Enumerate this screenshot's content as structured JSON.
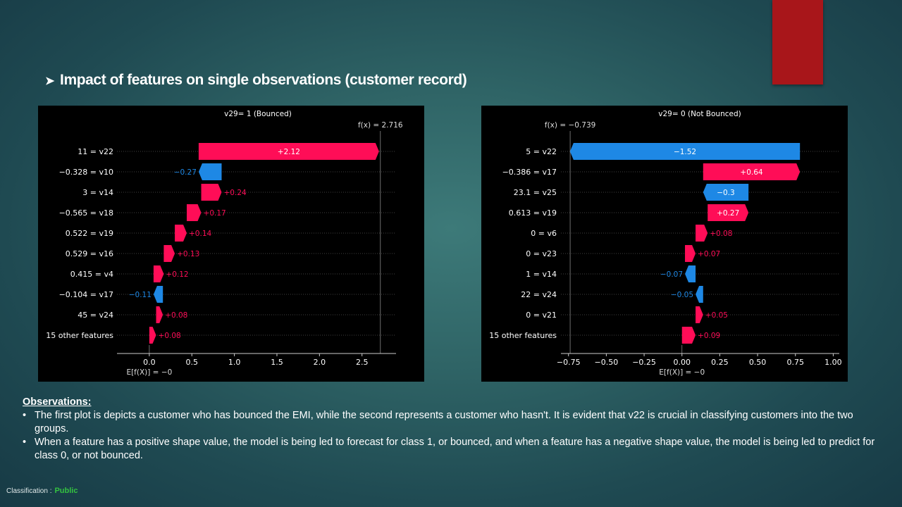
{
  "slide": {
    "title": "Impact of features on single observations (customer record)",
    "bullet_icon": "arrow-bullet-icon",
    "accent_color": "#a8161a"
  },
  "observations": {
    "heading": "Observations:",
    "items": [
      "The first plot is depicts a customer who has bounced the EMI, while the second represents a customer who hasn't. It is evident that v22 is crucial in classifying customers into the two groups.",
      "When a feature has a positive shape value, the model is being led to forecast for class 1, or bounced, and when a feature has a negative shape value, the model is being led to predict for class 0, or not bounced."
    ]
  },
  "classification": {
    "label": "Classification :",
    "value": "Public"
  },
  "colors": {
    "positive": "#ff0d57",
    "negative": "#1e88e5",
    "background": "#000000",
    "text": "#ffffff"
  },
  "chart_data": [
    {
      "type": "waterfall",
      "title": "v29= 1 (Bounced)",
      "fx_label": "f(x) = 2.716",
      "base_label": "E[f(X)] = −0",
      "fx": 2.716,
      "base": 0,
      "xlim": [
        -0.38,
        2.9
      ],
      "xticks": [
        0.0,
        0.5,
        1.0,
        1.5,
        2.0,
        2.5
      ],
      "xtick_labels": [
        "0.0",
        "0.5",
        "1.0",
        "1.5",
        "2.0",
        "2.5"
      ],
      "features": [
        {
          "value_label": "11",
          "name": "v22",
          "label": "11 = v22",
          "shap": 2.12,
          "shap_label": "+2.12"
        },
        {
          "value_label": "−0.328",
          "name": "v10",
          "label": "−0.328 = v10",
          "shap": -0.27,
          "shap_label": "−0.27"
        },
        {
          "value_label": "3",
          "name": "v14",
          "label": "3 = v14",
          "shap": 0.24,
          "shap_label": "+0.24"
        },
        {
          "value_label": "−0.565",
          "name": "v18",
          "label": "−0.565 = v18",
          "shap": 0.17,
          "shap_label": "+0.17"
        },
        {
          "value_label": "0.522",
          "name": "v19",
          "label": "0.522 = v19",
          "shap": 0.14,
          "shap_label": "+0.14"
        },
        {
          "value_label": "0.529",
          "name": "v16",
          "label": "0.529 = v16",
          "shap": 0.13,
          "shap_label": "+0.13"
        },
        {
          "value_label": "0.415",
          "name": "v4",
          "label": "0.415 = v4",
          "shap": 0.12,
          "shap_label": "+0.12"
        },
        {
          "value_label": "−0.104",
          "name": "v17",
          "label": "−0.104 = v17",
          "shap": -0.11,
          "shap_label": "−0.11"
        },
        {
          "value_label": "45",
          "name": "v24",
          "label": "45 = v24",
          "shap": 0.08,
          "shap_label": "+0.08"
        },
        {
          "value_label": "",
          "name": "15 other features",
          "label": "15 other features",
          "shap": 0.08,
          "shap_label": "+0.08"
        }
      ]
    },
    {
      "type": "waterfall",
      "title": "v29= 0 (Not Bounced)",
      "fx_label": "f(x) = −0.739",
      "base_label": "E[f(X)] = −0",
      "fx": -0.739,
      "base": 0,
      "xlim": [
        -0.8,
        1.04
      ],
      "xticks": [
        -0.75,
        -0.5,
        -0.25,
        0.0,
        0.25,
        0.5,
        0.75,
        1.0
      ],
      "xtick_labels": [
        "−0.75",
        "−0.50",
        "−0.25",
        "0.00",
        "0.25",
        "0.50",
        "0.75",
        "1.00"
      ],
      "features": [
        {
          "value_label": "5",
          "name": "v22",
          "label": "5 = v22",
          "shap": -1.52,
          "shap_label": "−1.52"
        },
        {
          "value_label": "−0.386",
          "name": "v17",
          "label": "−0.386 = v17",
          "shap": 0.64,
          "shap_label": "+0.64"
        },
        {
          "value_label": "23.1",
          "name": "v25",
          "label": "23.1 = v25",
          "shap": -0.3,
          "shap_label": "−0.3"
        },
        {
          "value_label": "0.613",
          "name": "v19",
          "label": "0.613 = v19",
          "shap": 0.27,
          "shap_label": "+0.27"
        },
        {
          "value_label": "0",
          "name": "v6",
          "label": "0 = v6",
          "shap": 0.08,
          "shap_label": "+0.08"
        },
        {
          "value_label": "0",
          "name": "v23",
          "label": "0 = v23",
          "shap": 0.07,
          "shap_label": "+0.07"
        },
        {
          "value_label": "1",
          "name": "v14",
          "label": "1 = v14",
          "shap": -0.07,
          "shap_label": "−0.07"
        },
        {
          "value_label": "22",
          "name": "v24",
          "label": "22 = v24",
          "shap": -0.05,
          "shap_label": "−0.05"
        },
        {
          "value_label": "0",
          "name": "v21",
          "label": "0 = v21",
          "shap": 0.05,
          "shap_label": "+0.05"
        },
        {
          "value_label": "",
          "name": "15 other features",
          "label": "15 other features",
          "shap": 0.09,
          "shap_label": "+0.09"
        }
      ]
    }
  ]
}
